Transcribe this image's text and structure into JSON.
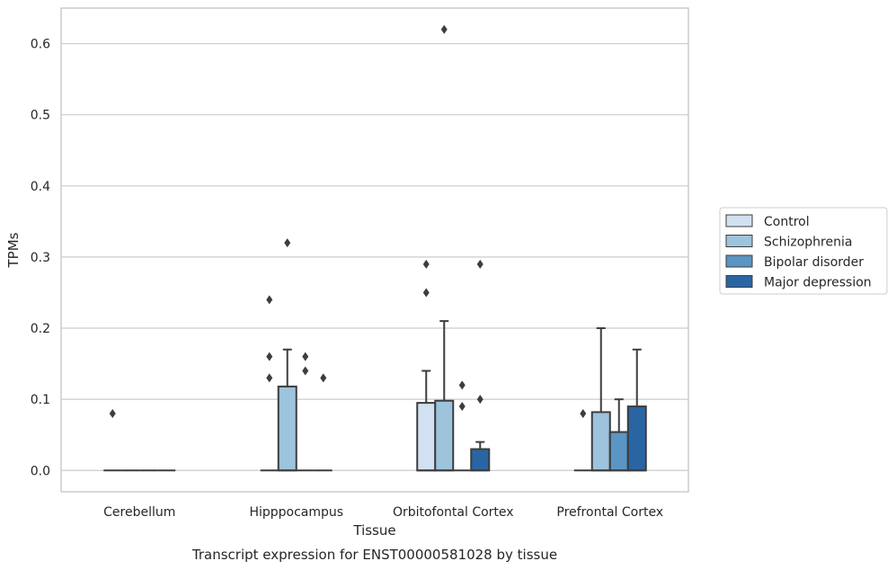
{
  "chart_data": {
    "type": "box",
    "title": "Transcript expression for ENST00000581028 by tissue",
    "xlabel": "Tissue",
    "ylabel": "TPMs",
    "ylim": [
      -0.03,
      0.65
    ],
    "yticks": [
      "0.0",
      "0.1",
      "0.2",
      "0.3",
      "0.4",
      "0.5",
      "0.6"
    ],
    "categories": [
      "Cerebellum",
      "Hipppocampus",
      "Orbitofontal Cortex",
      "Prefrontal Cortex"
    ],
    "grid": "horizontal",
    "legend_position": "right",
    "series": [
      {
        "name": "Control",
        "color": "#d1e1f1",
        "boxes": [
          {
            "q1": 0,
            "median": 0,
            "q3": 0,
            "whisker_low": 0,
            "whisker_high": 0,
            "outliers": [
              0.08
            ]
          },
          {
            "q1": 0,
            "median": 0,
            "q3": 0,
            "whisker_low": 0,
            "whisker_high": 0,
            "outliers": [
              0.13,
              0.16,
              0.24
            ]
          },
          {
            "q1": 0,
            "median": 0,
            "q3": 0.095,
            "whisker_low": 0,
            "whisker_high": 0.14,
            "outliers": [
              0.25,
              0.29
            ]
          },
          {
            "q1": 0,
            "median": 0,
            "q3": 0,
            "whisker_low": 0,
            "whisker_high": 0,
            "outliers": [
              0.08
            ]
          }
        ]
      },
      {
        "name": "Schizophrenia",
        "color": "#9dc3dd",
        "boxes": [
          {
            "q1": 0,
            "median": 0,
            "q3": 0,
            "whisker_low": 0,
            "whisker_high": 0,
            "outliers": []
          },
          {
            "q1": 0,
            "median": 0,
            "q3": 0.118,
            "whisker_low": 0,
            "whisker_high": 0.17,
            "outliers": [
              0.32
            ]
          },
          {
            "q1": 0,
            "median": 0,
            "q3": 0.098,
            "whisker_low": 0,
            "whisker_high": 0.21,
            "outliers": [
              0.62
            ]
          },
          {
            "q1": 0,
            "median": 0,
            "q3": 0.082,
            "whisker_low": 0,
            "whisker_high": 0.2,
            "outliers": []
          }
        ]
      },
      {
        "name": "Bipolar disorder",
        "color": "#5a95c3",
        "boxes": [
          {
            "q1": 0,
            "median": 0,
            "q3": 0,
            "whisker_low": 0,
            "whisker_high": 0,
            "outliers": []
          },
          {
            "q1": 0,
            "median": 0,
            "q3": 0,
            "whisker_low": 0,
            "whisker_high": 0,
            "outliers": [
              0.14,
              0.16
            ]
          },
          {
            "q1": 0,
            "median": 0,
            "q3": 0,
            "whisker_low": 0,
            "whisker_high": 0,
            "outliers": [
              0.09,
              0.12
            ]
          },
          {
            "q1": 0,
            "median": 0,
            "q3": 0.054,
            "whisker_low": 0,
            "whisker_high": 0.1,
            "outliers": []
          }
        ]
      },
      {
        "name": "Major depression",
        "color": "#2a65a3",
        "boxes": [
          {
            "q1": 0,
            "median": 0,
            "q3": 0,
            "whisker_low": 0,
            "whisker_high": 0,
            "outliers": []
          },
          {
            "q1": 0,
            "median": 0,
            "q3": 0,
            "whisker_low": 0,
            "whisker_high": 0,
            "outliers": [
              0.13
            ]
          },
          {
            "q1": 0,
            "median": 0,
            "q3": 0.03,
            "whisker_low": 0,
            "whisker_high": 0.04,
            "outliers": [
              0.1,
              0.29
            ]
          },
          {
            "q1": 0,
            "median": 0,
            "q3": 0.09,
            "whisker_low": 0,
            "whisker_high": 0.17,
            "outliers": []
          }
        ]
      }
    ]
  }
}
